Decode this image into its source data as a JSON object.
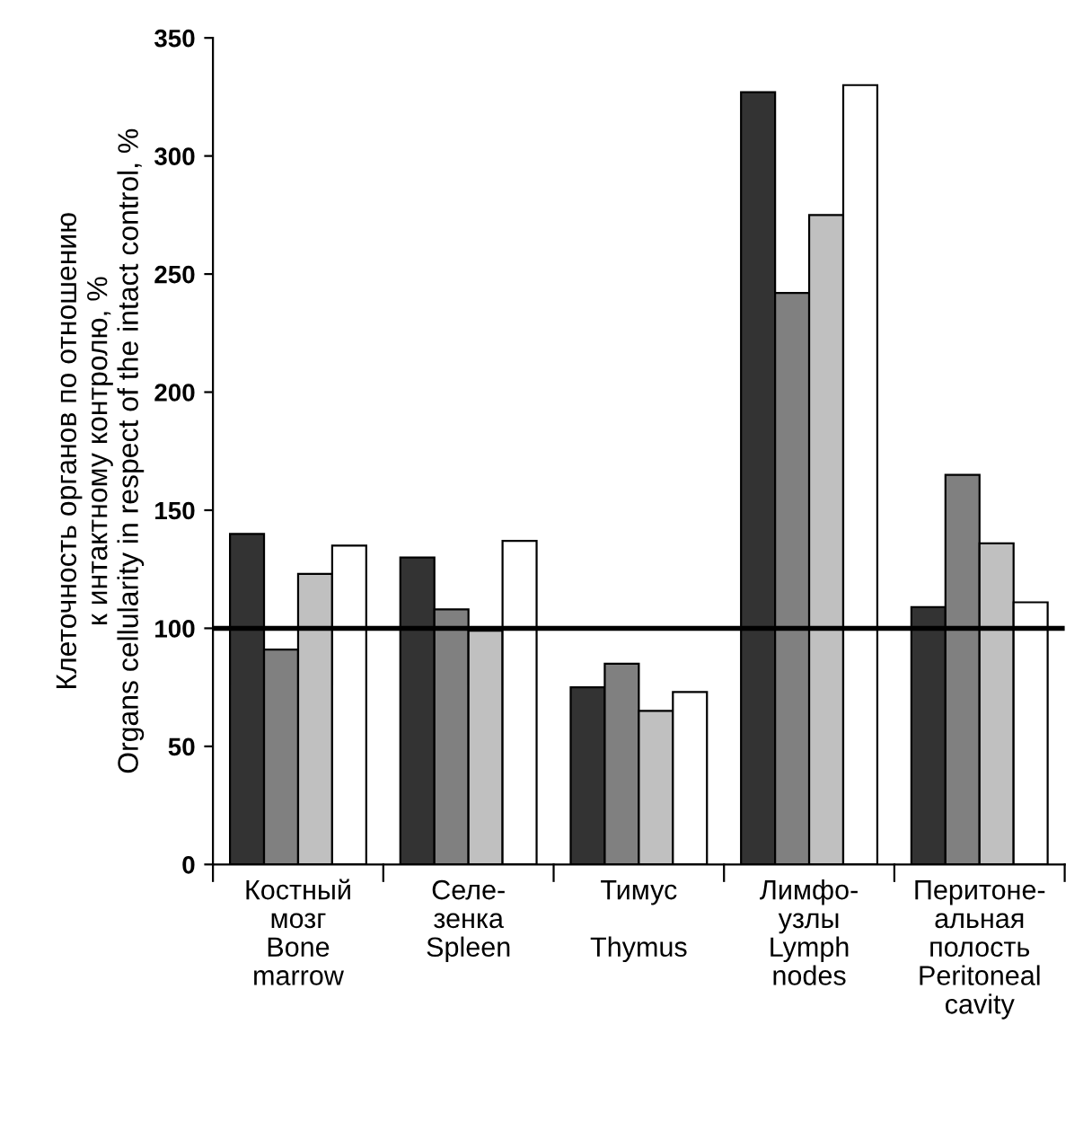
{
  "chart_data": {
    "type": "bar",
    "categories": [
      "Костный\nмозг\nBone\nmarrow",
      "Селе-\nзенка\nSpleen",
      "Тимус\n\nThymus",
      "Лимфо-\nузлы\nLymph\nnodes",
      "Перитоне-\nальная\nполость\nPeritoneal\ncavity"
    ],
    "series": [
      {
        "color": "#333333",
        "values": [
          140,
          130,
          75,
          327,
          109
        ]
      },
      {
        "color": "#808080",
        "values": [
          91,
          108,
          85,
          242,
          165
        ]
      },
      {
        "color": "#c0c0c0",
        "values": [
          123,
          99,
          65,
          275,
          136
        ]
      },
      {
        "color": "#ffffff",
        "values": [
          135,
          137,
          73,
          330,
          111
        ]
      }
    ],
    "ylabel": "Клеточность органов по отношению\nк интактному контролю, %\nOrgans cellularity in respect of the intact control, %",
    "ylim": [
      0,
      350
    ],
    "yticks": [
      0,
      50,
      100,
      150,
      200,
      250,
      300,
      350
    ],
    "ref_lines": [
      {
        "axis": "y",
        "value": 100,
        "color": "#000000"
      }
    ],
    "grid": false,
    "legend": false
  }
}
